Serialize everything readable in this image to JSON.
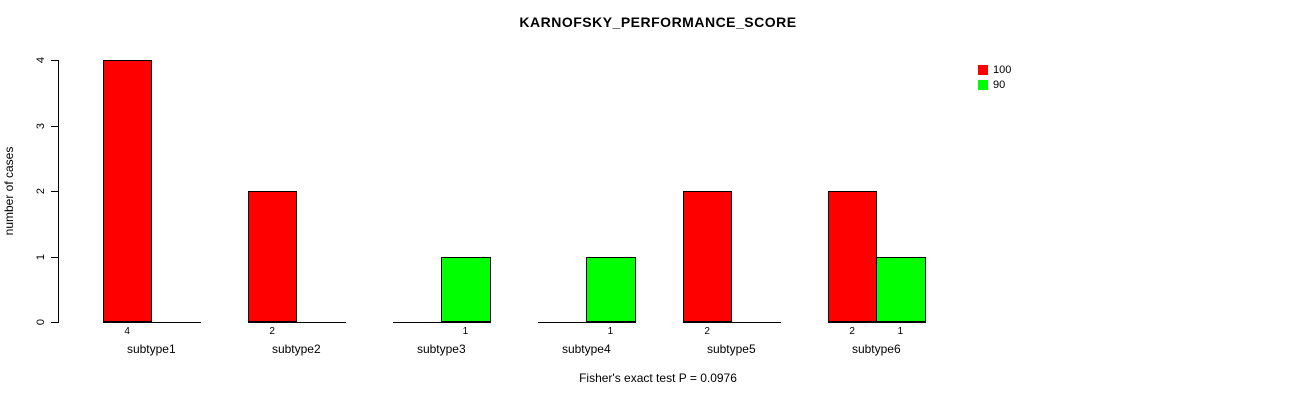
{
  "title": "KARNOFSKY_PERFORMANCE_SCORE",
  "chart_data": {
    "type": "bar",
    "title": "KARNOFSKY_PERFORMANCE_SCORE",
    "categories": [
      "subtype1",
      "subtype2",
      "subtype3",
      "subtype4",
      "subtype5",
      "subtype6"
    ],
    "series": [
      {
        "name": "100",
        "color": "#FF0000",
        "values": [
          4,
          2,
          0,
          0,
          2,
          2
        ]
      },
      {
        "name": "90",
        "color": "#00FF00",
        "values": [
          0,
          0,
          1,
          1,
          0,
          1
        ]
      }
    ],
    "xlabel": "",
    "ylabel": "number of cases",
    "ylim": [
      0,
      4
    ],
    "yticks": [
      "0",
      "1",
      "2",
      "3",
      "4"
    ],
    "grid": false,
    "bar_value_labels": true,
    "legend": {
      "position": "top-right",
      "entries": [
        {
          "label": "100",
          "color": "#FF0000"
        },
        {
          "label": "90",
          "color": "#00FF00"
        }
      ]
    },
    "annotation": "Fisher's exact test P = 0.0976"
  }
}
